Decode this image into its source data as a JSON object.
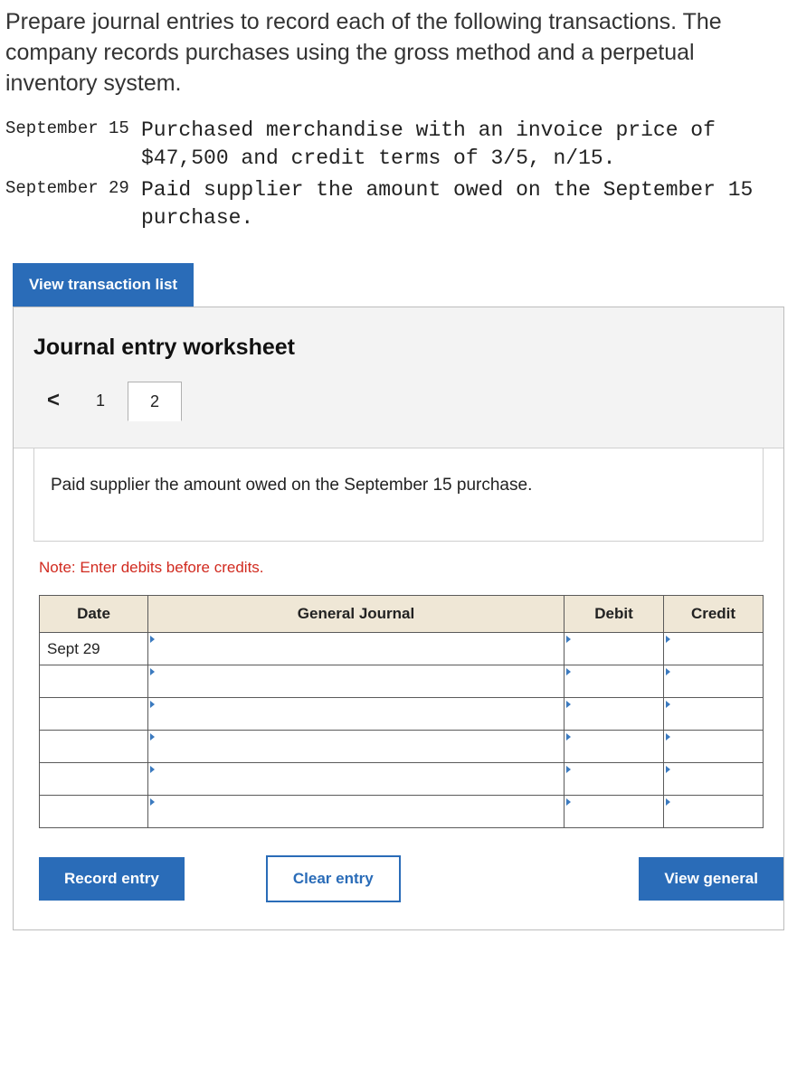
{
  "instructions": "Prepare journal entries to record each of the following transactions. The company records purchases using the gross method and a perpetual inventory system.",
  "transactions": [
    {
      "date": "September 15",
      "desc": "Purchased merchandise with an invoice price of $47,500 and credit terms of 3/5, n/15."
    },
    {
      "date": "September 29",
      "desc": "Paid supplier the amount owed on the September 15 purchase."
    }
  ],
  "buttons": {
    "view_list": "View transaction list",
    "record": "Record entry",
    "clear": "Clear entry",
    "view_general": "View general"
  },
  "worksheet": {
    "title": "Journal entry worksheet",
    "tabs": {
      "prev": "<",
      "t1": "1",
      "t2": "2"
    },
    "question": "Paid supplier the amount owed on the September 15 purchase.",
    "note": "Note: Enter debits before credits.",
    "headers": {
      "date": "Date",
      "gj": "General Journal",
      "debit": "Debit",
      "credit": "Credit"
    },
    "rows": [
      {
        "date": "Sept 29",
        "gj": "",
        "debit": "",
        "credit": ""
      },
      {
        "date": "",
        "gj": "",
        "debit": "",
        "credit": ""
      },
      {
        "date": "",
        "gj": "",
        "debit": "",
        "credit": ""
      },
      {
        "date": "",
        "gj": "",
        "debit": "",
        "credit": ""
      },
      {
        "date": "",
        "gj": "",
        "debit": "",
        "credit": ""
      },
      {
        "date": "",
        "gj": "",
        "debit": "",
        "credit": ""
      }
    ]
  },
  "colors": {
    "primary": "#2a6cb8",
    "header_bg": "#efe7d6",
    "note": "#d12a1f",
    "panel_bg": "#f3f3f3"
  }
}
